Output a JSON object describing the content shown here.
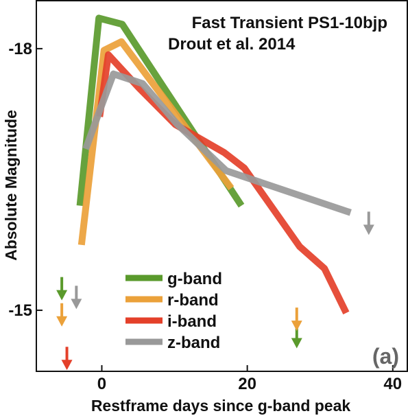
{
  "chart_data": {
    "type": "line",
    "title": "",
    "annotations": [
      "Fast Transient PS1-10bjp",
      "Drout et al. 2014"
    ],
    "panel_label": "(a)",
    "xlabel": "Restframe days since g-band peak",
    "ylabel": "Absolute Magnitude",
    "xlim": [
      -9,
      42
    ],
    "ylim": [
      -14.3,
      -18.55
    ],
    "y_inverted": true,
    "x_ticks": [
      0,
      20,
      40
    ],
    "x_tick_labels": [
      "0",
      "20",
      "40"
    ],
    "y_ticks": [
      -18,
      -15
    ],
    "y_tick_labels": [
      "-18",
      "-15"
    ],
    "grid": false,
    "legend_position": "center-left",
    "series": [
      {
        "name": "g-band",
        "color": "#5a9a2c",
        "x": [
          -3.0,
          -0.4,
          2.8,
          19.2
        ],
        "y": [
          -16.2,
          -18.35,
          -18.28,
          -16.2
        ],
        "upper_limits": [
          {
            "x": -5.5,
            "y": -15.2
          },
          {
            "x": 26.8,
            "y": -14.65
          }
        ]
      },
      {
        "name": "r-band",
        "color": "#eba13a",
        "x": [
          -2.8,
          0.3,
          2.7,
          17.8
        ],
        "y": [
          -15.75,
          -17.98,
          -18.08,
          -16.4
        ],
        "upper_limits": [
          {
            "x": -5.5,
            "y": -14.9
          },
          {
            "x": 26.8,
            "y": -14.85
          }
        ]
      },
      {
        "name": "i-band",
        "color": "#e4402a",
        "x": [
          -0.3,
          0.9,
          5.1,
          10.1,
          16.8,
          19.6,
          27.2,
          30.6,
          33.6
        ],
        "y": [
          -17.22,
          -17.93,
          -17.55,
          -17.13,
          -16.81,
          -16.63,
          -15.73,
          -15.48,
          -14.97
        ],
        "upper_limits": [
          {
            "x": -4.8,
            "y": -14.4
          }
        ]
      },
      {
        "name": "z-band",
        "color": "#999999",
        "x": [
          -2.2,
          -0.6,
          1.6,
          5.6,
          10.4,
          17.1,
          34.2
        ],
        "y": [
          -16.85,
          -17.22,
          -17.71,
          -17.6,
          -17.13,
          -16.6,
          -16.12
        ],
        "upper_limits": [
          {
            "x": -3.5,
            "y": -15.1
          },
          {
            "x": 36.7,
            "y": -15.95
          }
        ]
      }
    ]
  }
}
